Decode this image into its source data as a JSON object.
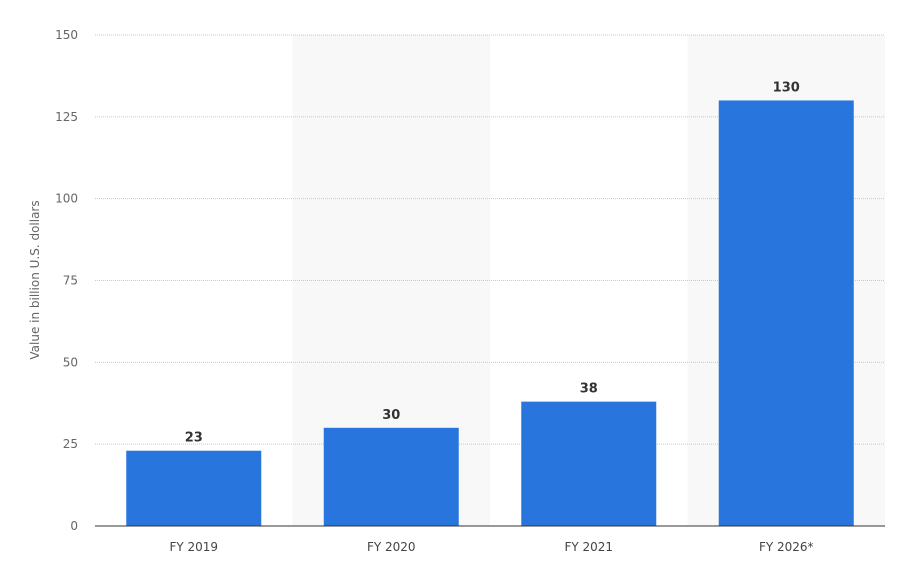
{
  "chart_data": {
    "type": "bar",
    "categories": [
      "FY 2019",
      "FY 2020",
      "FY 2021",
      "FY 2026*"
    ],
    "values": [
      23,
      30,
      38,
      130
    ],
    "data_labels": [
      "23",
      "30",
      "38",
      "130"
    ],
    "title": "",
    "xlabel": "",
    "ylabel": "Value in billion U.S. dollars",
    "ylim": [
      0,
      150
    ],
    "yticks": [
      0,
      25,
      50,
      75,
      100,
      125,
      150
    ],
    "grid": true,
    "bar_color": "#2876dd",
    "band_color": "#f8f8f8"
  }
}
